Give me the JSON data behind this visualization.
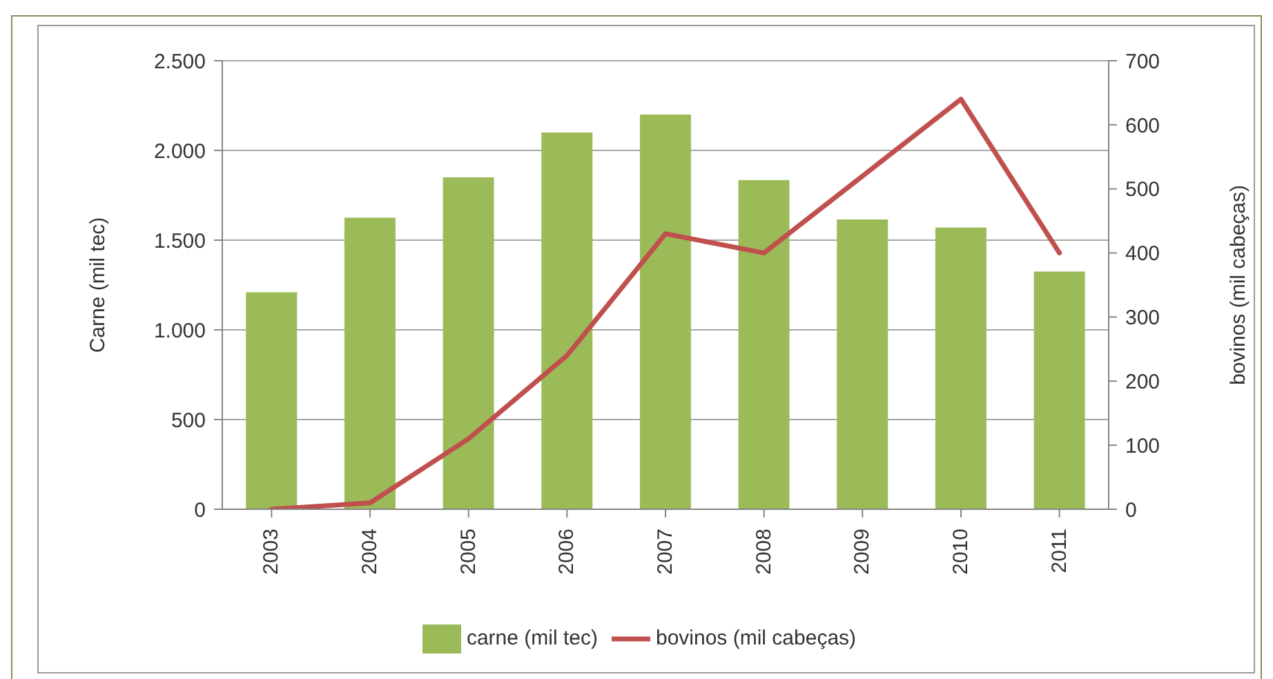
{
  "chart_data": {
    "type": "bar",
    "categories": [
      "2003",
      "2004",
      "2005",
      "2006",
      "2007",
      "2008",
      "2009",
      "2010",
      "2011"
    ],
    "ylabel": "Carne (mil tec)",
    "y2label": "bovinos (mil cabeças)",
    "series": [
      {
        "name": "carne (mil tec)",
        "color": "#9bbb59",
        "values": [
          1210,
          1625,
          1850,
          2100,
          2200,
          1835,
          1615,
          1570,
          1325
        ]
      },
      {
        "name": "bovinos (mil cabeças)",
        "type": "line",
        "axis": "y2",
        "color": "#c0504d",
        "values": [
          0,
          10,
          110,
          240,
          430,
          400,
          520,
          640,
          400
        ]
      }
    ],
    "ylim": [
      0,
      2500
    ],
    "yticks": [
      0,
      500,
      {
        "value": 1000,
        "label": "1.000"
      },
      {
        "value": 1500,
        "label": "1.500"
      },
      {
        "value": 2000,
        "label": "2.000"
      },
      {
        "value": 2500,
        "label": "2.500"
      }
    ],
    "y2lim": [
      0,
      700
    ],
    "y2ticks": [
      0,
      100,
      200,
      300,
      400,
      500,
      600,
      700
    ],
    "grid": "y",
    "legend": "bottom",
    "marker": "none",
    "line_style": "solid"
  }
}
